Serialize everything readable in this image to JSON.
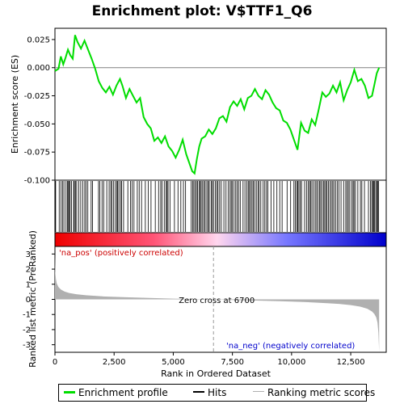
{
  "chart_data": {
    "type": "line",
    "title": "Enrichment plot: V$TTF1_Q6",
    "n_genes": 13700,
    "upper_panel": {
      "ylabel": "Enrichment score (ES)",
      "ylim": [
        -0.1,
        0.035
      ],
      "yticks": [
        0.025,
        0.0,
        -0.025,
        -0.05,
        -0.075,
        -0.1
      ],
      "ytick_labels": [
        "0.025",
        "0.000",
        "-0.025",
        "-0.050",
        "-0.075",
        "-0.100"
      ],
      "grid": false
    },
    "es_series": {
      "name": "Enrichment profile",
      "color": "#00dd00",
      "x": [
        0,
        150,
        250,
        350,
        450,
        550,
        650,
        750,
        850,
        950,
        1100,
        1250,
        1400,
        1550,
        1700,
        1850,
        2000,
        2150,
        2300,
        2450,
        2600,
        2750,
        2850,
        3000,
        3150,
        3300,
        3450,
        3600,
        3750,
        3900,
        4050,
        4200,
        4350,
        4500,
        4650,
        4800,
        4950,
        5100,
        5250,
        5400,
        5550,
        5700,
        5800,
        5900,
        6000,
        6100,
        6200,
        6350,
        6500,
        6650,
        6800,
        6950,
        7100,
        7250,
        7400,
        7550,
        7700,
        7850,
        8000,
        8150,
        8300,
        8450,
        8600,
        8750,
        8900,
        9050,
        9200,
        9350,
        9500,
        9650,
        9800,
        9950,
        10100,
        10250,
        10400,
        10550,
        10700,
        10850,
        11000,
        11150,
        11300,
        11450,
        11600,
        11750,
        11900,
        12050,
        12200,
        12350,
        12500,
        12650,
        12800,
        12950,
        13100,
        13250,
        13400,
        13500,
        13600,
        13700
      ],
      "y": [
        -0.003,
        -0.001,
        0.01,
        0.003,
        0.009,
        0.016,
        0.011,
        0.008,
        0.029,
        0.023,
        0.017,
        0.024,
        0.016,
        0.008,
        -0.001,
        -0.012,
        -0.018,
        -0.022,
        -0.017,
        -0.024,
        -0.016,
        -0.01,
        -0.016,
        -0.027,
        -0.019,
        -0.025,
        -0.031,
        -0.027,
        -0.044,
        -0.05,
        -0.054,
        -0.065,
        -0.062,
        -0.067,
        -0.061,
        -0.07,
        -0.074,
        -0.08,
        -0.073,
        -0.064,
        -0.077,
        -0.086,
        -0.092,
        -0.094,
        -0.081,
        -0.07,
        -0.063,
        -0.061,
        -0.055,
        -0.059,
        -0.054,
        -0.045,
        -0.043,
        -0.048,
        -0.035,
        -0.03,
        -0.034,
        -0.028,
        -0.037,
        -0.027,
        -0.025,
        -0.019,
        -0.025,
        -0.028,
        -0.02,
        -0.024,
        -0.031,
        -0.036,
        -0.038,
        -0.047,
        -0.049,
        -0.055,
        -0.064,
        -0.073,
        -0.049,
        -0.056,
        -0.058,
        -0.046,
        -0.051,
        -0.037,
        -0.022,
        -0.026,
        -0.023,
        -0.016,
        -0.022,
        -0.013,
        -0.029,
        -0.02,
        -0.013,
        -0.002,
        -0.012,
        -0.01,
        -0.016,
        -0.027,
        -0.025,
        -0.015,
        -0.005,
        0.0
      ]
    },
    "hits": {
      "name": "Hits",
      "x": [
        30,
        180,
        260,
        320,
        380,
        470,
        530,
        570,
        610,
        640,
        700,
        790,
        820,
        870,
        920,
        1010,
        1090,
        1180,
        1260,
        1320,
        1390,
        1530,
        1590,
        1840,
        1900,
        1990,
        2060,
        2190,
        2290,
        2360,
        2400,
        2470,
        2550,
        2610,
        2650,
        2700,
        2770,
        2820,
        2900,
        3080,
        3190,
        3260,
        3340,
        3480,
        3560,
        3660,
        3820,
        3940,
        4060,
        4240,
        4380,
        4470,
        4530,
        4620,
        4700,
        4740,
        4780,
        4860,
        5050,
        5200,
        5320,
        5430,
        5520,
        5760,
        5820,
        5870,
        5930,
        5980,
        6030,
        6090,
        6140,
        6180,
        6240,
        6300,
        6350,
        6420,
        6480,
        6520,
        6600,
        6650,
        6700,
        6780,
        6840,
        6890,
        6960,
        7030,
        7140,
        7230,
        7320,
        7400,
        7450,
        7500,
        7570,
        7640,
        7700,
        7760,
        7830,
        7950,
        8030,
        8110,
        8170,
        8220,
        8270,
        8330,
        8380,
        8440,
        8510,
        8580,
        8630,
        8700,
        8800,
        8870,
        8940,
        9000,
        9130,
        9250,
        9380,
        9500,
        9600,
        9810,
        9960,
        10100,
        10160,
        10220,
        10260,
        10310,
        10370,
        10420,
        10550,
        10630,
        10700,
        10760,
        10800,
        10860,
        10930,
        11000,
        11060,
        11120,
        11180,
        11230,
        11290,
        11350,
        11400,
        11450,
        11500,
        11560,
        11620,
        11680,
        11740,
        11790,
        11860,
        11930,
        12000,
        12090,
        12200,
        12290,
        12350,
        12400,
        12460,
        12540,
        12600,
        12640,
        12700,
        12800,
        12910,
        12970,
        13080,
        13250,
        13330,
        13390,
        13430,
        13470,
        13510,
        13560,
        13600,
        13640,
        13680
      ]
    },
    "ranked_metric": {
      "name": "Ranking metric scores",
      "ylabel": "Ranked list metric (PreRanked)",
      "ylim": [
        -3.5,
        3.5
      ],
      "yticks": [
        3,
        2,
        1,
        0,
        -1,
        -2,
        -3
      ],
      "ytick_labels": [
        "3",
        "2",
        "1",
        "0",
        "-1",
        "-2",
        "-3"
      ],
      "x": [
        0,
        15,
        40,
        80,
        150,
        250,
        400,
        600,
        900,
        1300,
        2000,
        3000,
        4000,
        5000,
        6000,
        6700,
        7500,
        8500,
        9500,
        10500,
        11500,
        12000,
        12500,
        12900,
        13200,
        13400,
        13500,
        13580,
        13630,
        13670,
        13690,
        13700
      ],
      "y": [
        3.0,
        1.8,
        1.35,
        1.05,
        0.82,
        0.65,
        0.52,
        0.42,
        0.34,
        0.27,
        0.2,
        0.14,
        0.09,
        0.05,
        0.02,
        0.0,
        -0.04,
        -0.08,
        -0.12,
        -0.17,
        -0.25,
        -0.3,
        -0.38,
        -0.48,
        -0.62,
        -0.8,
        -0.98,
        -1.2,
        -1.55,
        -2.2,
        -3.0,
        -3.45
      ]
    },
    "xaxis": {
      "label": "Rank in Ordered Dataset",
      "xlim": [
        0,
        14000
      ],
      "ticks": [
        0,
        2500,
        5000,
        7500,
        10000,
        12500
      ],
      "tick_labels": [
        "0",
        "2,500",
        "5,000",
        "7,500",
        "10,000",
        "12,500"
      ]
    },
    "zero_cross": {
      "rank": 6700,
      "label": "Zero cross at 6700"
    },
    "pos_label": "'na_pos' (positively correlated)",
    "neg_label": "'na_neg' (negatively correlated)",
    "colors": {
      "es_line": "#00dd00",
      "pos_text": "#cc0000",
      "neg_text": "#0000cc",
      "metric_fill": "#b0b0b0",
      "gradient_pos": "#ff0000",
      "gradient_mid": "#ffccff",
      "gradient_neg": "#0000ff"
    }
  },
  "legend": {
    "items": [
      "Enrichment profile",
      "Hits",
      "Ranking metric scores"
    ],
    "location": "bottom"
  }
}
